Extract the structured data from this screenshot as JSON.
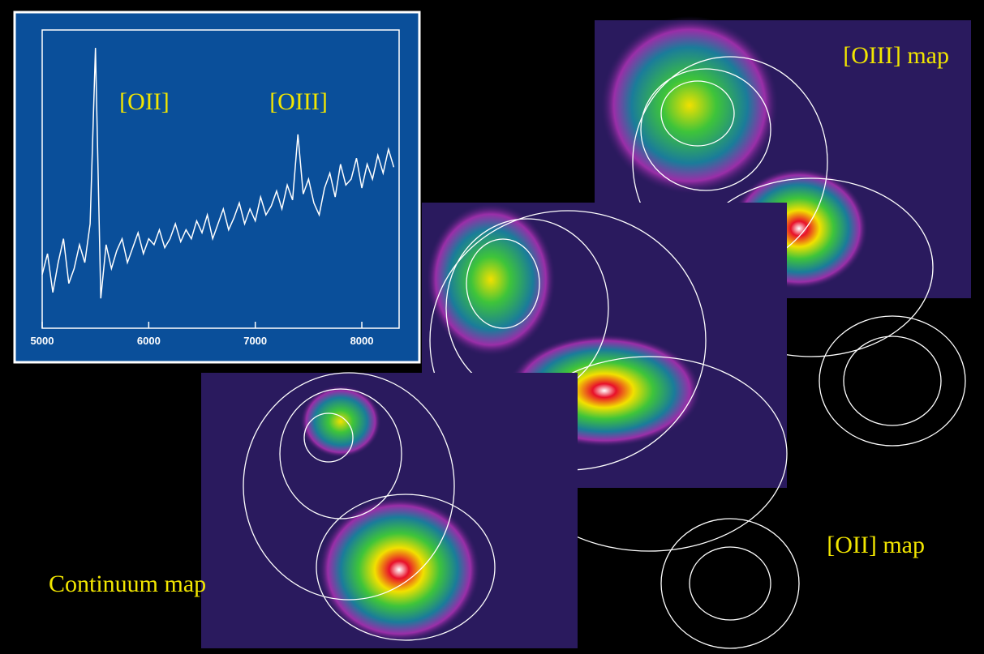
{
  "chart_data": {
    "type": "line",
    "x": [
      5000,
      5050,
      5100,
      5150,
      5200,
      5250,
      5300,
      5350,
      5400,
      5450,
      5500,
      5550,
      5600,
      5650,
      5700,
      5750,
      5800,
      5850,
      5900,
      5950,
      6000,
      6050,
      6100,
      6150,
      6200,
      6250,
      6300,
      6350,
      6400,
      6450,
      6500,
      6550,
      6600,
      6650,
      6700,
      6750,
      6800,
      6850,
      6900,
      6950,
      7000,
      7050,
      7100,
      7150,
      7200,
      7250,
      7300,
      7350,
      7400,
      7450,
      7500,
      7550,
      7600,
      7650,
      7700,
      7750,
      7800,
      7850,
      7900,
      7950,
      8000,
      8050,
      8100,
      8150,
      8200,
      8250,
      8300
    ],
    "values": [
      0.18,
      0.25,
      0.12,
      0.22,
      0.3,
      0.15,
      0.2,
      0.28,
      0.22,
      0.35,
      0.94,
      0.1,
      0.28,
      0.2,
      0.26,
      0.3,
      0.22,
      0.27,
      0.32,
      0.25,
      0.3,
      0.28,
      0.33,
      0.27,
      0.3,
      0.35,
      0.29,
      0.33,
      0.3,
      0.36,
      0.32,
      0.38,
      0.3,
      0.35,
      0.4,
      0.33,
      0.37,
      0.42,
      0.35,
      0.4,
      0.36,
      0.44,
      0.38,
      0.41,
      0.46,
      0.4,
      0.48,
      0.43,
      0.65,
      0.45,
      0.5,
      0.42,
      0.38,
      0.47,
      0.52,
      0.44,
      0.55,
      0.48,
      0.5,
      0.57,
      0.47,
      0.55,
      0.5,
      0.58,
      0.52,
      0.6,
      0.54
    ],
    "color": "#ffffff",
    "xlim": [
      5000,
      8350
    ],
    "ylim": [
      0,
      1
    ],
    "xticks": [
      5000,
      6000,
      7000,
      8000
    ],
    "annotations": [
      "[OII]",
      "[OIII]"
    ]
  },
  "maps": [
    {
      "label": "[OIII] map"
    },
    {
      "label": "[OII] map"
    },
    {
      "label": "Continuum map"
    }
  ]
}
